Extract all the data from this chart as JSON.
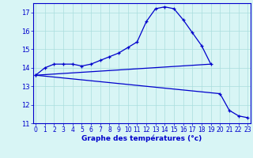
{
  "xlabel": "Graphe des températures (°c)",
  "bg_color": "#d8f5f5",
  "grid_color": "#aadddd",
  "line_color": "#0000cc",
  "line1_x": [
    0,
    1,
    2,
    3,
    4,
    5,
    6,
    7,
    8,
    9,
    10,
    11,
    12,
    13,
    14,
    15,
    16,
    17,
    18,
    19
  ],
  "line1_y": [
    13.6,
    14.0,
    14.2,
    14.2,
    14.2,
    14.1,
    14.2,
    14.4,
    14.6,
    14.8,
    15.1,
    15.4,
    16.5,
    17.2,
    17.3,
    17.2,
    16.6,
    15.9,
    15.2,
    14.2
  ],
  "line2_x": [
    0,
    19
  ],
  "line2_y": [
    13.6,
    14.2
  ],
  "line3_x": [
    0,
    20,
    21,
    22,
    23
  ],
  "line3_y": [
    13.6,
    12.6,
    11.7,
    11.4,
    11.3
  ],
  "ylim": [
    11,
    17.5
  ],
  "xlim": [
    -0.3,
    23.3
  ],
  "yticks": [
    11,
    12,
    13,
    14,
    15,
    16,
    17
  ],
  "xticks": [
    0,
    1,
    2,
    3,
    4,
    5,
    6,
    7,
    8,
    9,
    10,
    11,
    12,
    13,
    14,
    15,
    16,
    17,
    18,
    19,
    20,
    21,
    22,
    23
  ],
  "xlabel_fontsize": 6.5,
  "tick_fontsize": 5.5,
  "ytick_fontsize": 6.0,
  "linewidth": 0.9,
  "marker_size": 3.5,
  "marker_ew": 0.9
}
